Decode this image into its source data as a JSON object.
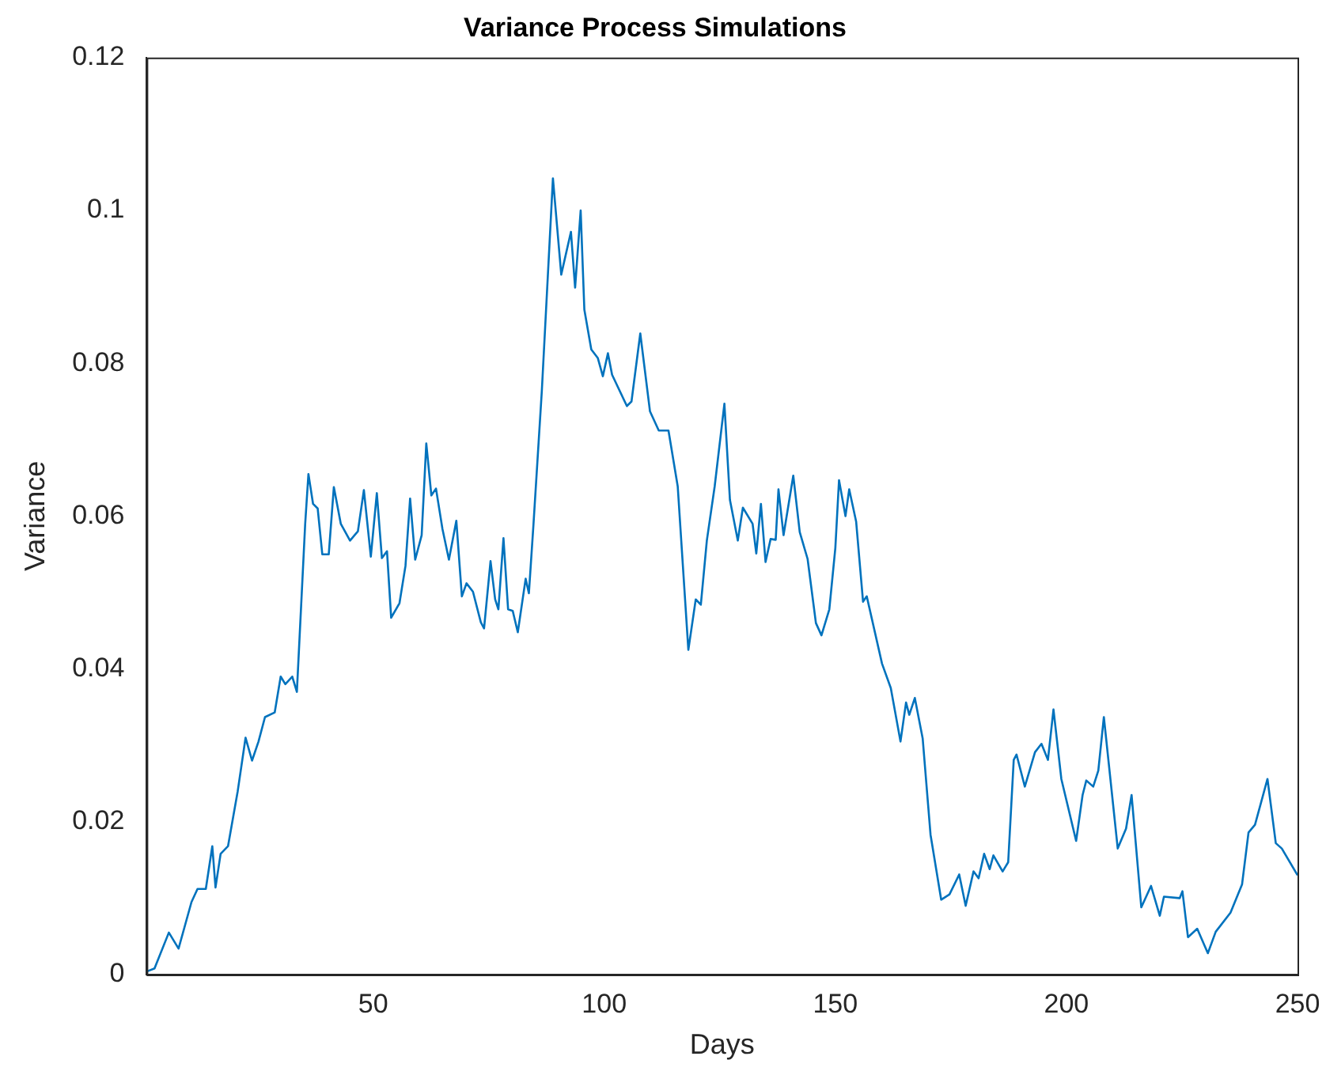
{
  "chart_data": {
    "type": "line",
    "title": "Variance Process Simulations",
    "xlabel": "Days",
    "ylabel": "Variance",
    "xlim": [
      1,
      250
    ],
    "xticks": [
      50,
      100,
      150,
      200,
      250
    ],
    "ylim": [
      0,
      0.12
    ],
    "yticks": [
      0,
      0.02,
      0.04,
      0.06,
      0.08,
      0.1,
      0.12
    ],
    "grid": false,
    "legend": false,
    "marker": "none",
    "line_style": "solid",
    "series": [
      {
        "color": "#0072bd",
        "x": [
          1,
          2.7,
          5.8,
          7.9,
          10.7,
          12,
          13.8,
          15.2,
          15.9,
          17,
          18.6,
          20.7,
          22.4,
          23.8,
          25.2,
          26.6,
          28.7,
          30,
          31,
          32.5,
          33.5,
          35.3,
          36,
          37,
          38,
          39,
          40.4,
          41.5,
          43,
          45,
          46.7,
          48,
          49.5,
          50.8,
          51.9,
          53,
          53.9,
          55.7,
          57,
          58,
          59.1,
          60.5,
          61.5,
          62.6,
          63.6,
          65,
          66.4,
          68,
          69.2,
          70.2,
          71.6,
          73.3,
          74,
          75.4,
          76.4,
          77.1,
          78.2,
          79.2,
          80.2,
          81.3,
          83,
          83.7,
          84.7,
          86.5,
          88.9,
          90.7,
          92.8,
          93.7,
          94.9,
          95.7,
          97.2,
          98.6,
          99.7,
          100.8,
          101.7,
          104.9,
          105.9,
          107.8,
          109.9,
          111.8,
          113.9,
          115.9,
          118.2,
          119.8,
          120.9,
          122.2,
          123.9,
          126,
          127.2,
          128.9,
          130,
          132.1,
          132.9,
          133.9,
          134.9,
          136,
          137.1,
          137.7,
          138.8,
          140.9,
          142.3,
          144,
          145.8,
          147,
          148.7,
          150,
          150.8,
          152.2,
          153,
          154.5,
          156,
          156.8,
          160.1,
          162,
          164.1,
          165.3,
          166,
          167.2,
          168.9,
          170.6,
          172.9,
          174.7,
          176.8,
          178.2,
          179.9,
          181,
          182.2,
          183.4,
          184.2,
          186.2,
          187.4,
          188.6,
          189.2,
          191,
          193.2,
          194.6,
          196,
          197.2,
          198.9,
          202.1,
          203.5,
          204.3,
          205.8,
          206.9,
          208.1,
          211.1,
          212.9,
          214.1,
          216.2,
          218.3,
          220.2,
          221.1,
          224.5,
          225.1,
          226.3,
          228.3,
          230.6,
          232.3,
          235.5,
          238,
          239.4,
          240.8,
          243.5,
          245.3,
          246.6,
          250
        ],
        "values": [
          0.0004,
          0.0008,
          0.0055,
          0.0034,
          0.0095,
          0.0112,
          0.0112,
          0.0168,
          0.0114,
          0.0158,
          0.0168,
          0.024,
          0.031,
          0.028,
          0.0305,
          0.0337,
          0.0343,
          0.039,
          0.038,
          0.039,
          0.037,
          0.059,
          0.0655,
          0.0616,
          0.061,
          0.055,
          0.055,
          0.0638,
          0.059,
          0.0568,
          0.058,
          0.0634,
          0.0547,
          0.063,
          0.0545,
          0.0554,
          0.0467,
          0.0486,
          0.0535,
          0.0623,
          0.0543,
          0.0575,
          0.0695,
          0.0627,
          0.0636,
          0.0583,
          0.0543,
          0.0594,
          0.0495,
          0.0512,
          0.0501,
          0.0461,
          0.0453,
          0.0541,
          0.0491,
          0.0478,
          0.0571,
          0.0478,
          0.0476,
          0.0448,
          0.0518,
          0.0499,
          0.059,
          0.0764,
          0.1042,
          0.0916,
          0.0972,
          0.0899,
          0.1,
          0.087,
          0.0818,
          0.0807,
          0.0783,
          0.0813,
          0.0785,
          0.0744,
          0.075,
          0.0839,
          0.0737,
          0.0712,
          0.0712,
          0.0639,
          0.0425,
          0.0491,
          0.0484,
          0.0568,
          0.0639,
          0.0747,
          0.0621,
          0.0568,
          0.0611,
          0.059,
          0.0551,
          0.0616,
          0.054,
          0.057,
          0.0569,
          0.0635,
          0.0575,
          0.0653,
          0.0579,
          0.0544,
          0.046,
          0.0444,
          0.0478,
          0.0558,
          0.0647,
          0.06,
          0.0635,
          0.0593,
          0.0488,
          0.0495,
          0.0407,
          0.0375,
          0.0305,
          0.0356,
          0.034,
          0.0362,
          0.0309,
          0.0183,
          0.0098,
          0.0105,
          0.0131,
          0.009,
          0.0135,
          0.0126,
          0.0158,
          0.0138,
          0.0156,
          0.0135,
          0.0147,
          0.0281,
          0.0288,
          0.0246,
          0.0291,
          0.0302,
          0.0281,
          0.0347,
          0.0256,
          0.0175,
          0.0235,
          0.0254,
          0.0246,
          0.0267,
          0.0337,
          0.0165,
          0.0191,
          0.0235,
          0.0088,
          0.0116,
          0.0077,
          0.0102,
          0.01,
          0.0109,
          0.0049,
          0.006,
          0.0028,
          0.0056,
          0.0081,
          0.0118,
          0.0186,
          0.0196,
          0.0256,
          0.0172,
          0.0165,
          0.013
        ]
      }
    ]
  }
}
